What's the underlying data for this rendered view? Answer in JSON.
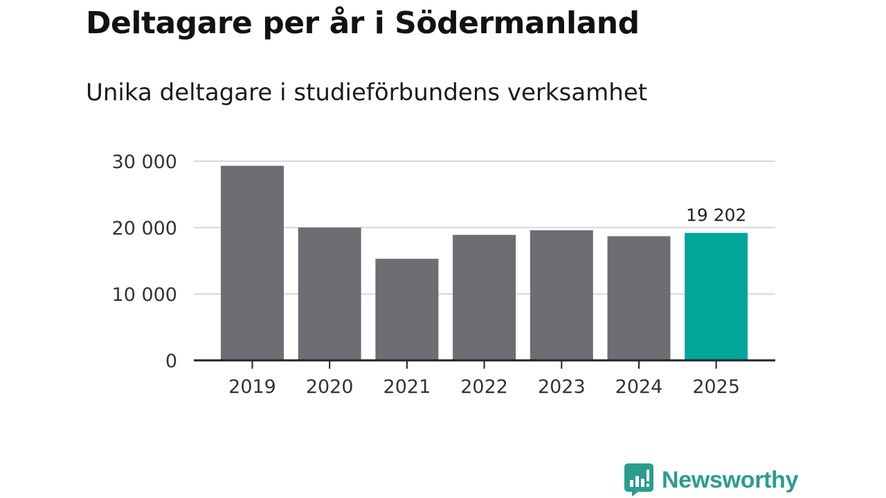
{
  "title": "Deltagare per år i Södermanland",
  "subtitle": "Unika deltagare i studieförbundens verksamhet",
  "chart_data": {
    "type": "bar",
    "title": "Deltagare per år i Södermanland",
    "subtitle": "Unika deltagare i studieförbundens verksamhet",
    "categories": [
      "2019",
      "2020",
      "2021",
      "2022",
      "2023",
      "2024",
      "2025"
    ],
    "values": [
      29300,
      20000,
      15300,
      18900,
      19600,
      18700,
      19202
    ],
    "ylim": [
      0,
      30000
    ],
    "yticks": [
      0,
      10000,
      20000,
      30000
    ],
    "ytick_labels": [
      "0",
      "10 000",
      "20 000",
      "30 000"
    ],
    "grid": true,
    "highlight_index": 6,
    "highlight_label": "19 202",
    "colors": {
      "bar": "#6e6d73",
      "highlight": "#00a699",
      "grid": "#d9d9d9",
      "axis": "#222222"
    }
  },
  "brand": {
    "name": "Newsworthy",
    "color": "#2a9d8f",
    "icon": "bar-chart-logo-icon"
  }
}
